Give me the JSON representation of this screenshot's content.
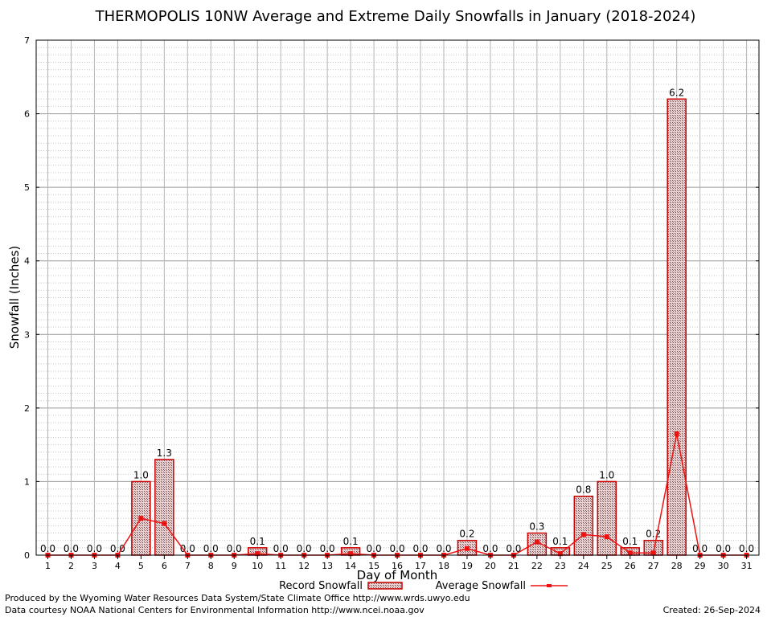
{
  "chart_data": {
    "type": "bar",
    "title": "THERMOPOLIS 10NW Average and Extreme Daily Snowfalls in January (2018-2024)",
    "xlabel": "Day of Month",
    "ylabel": "Snowfall (Inches)",
    "ylim": [
      0,
      7
    ],
    "yticks": [
      "0",
      "1",
      "2",
      "3",
      "4",
      "5",
      "6",
      "7"
    ],
    "categories": [
      "1",
      "2",
      "3",
      "4",
      "5",
      "6",
      "7",
      "8",
      "9",
      "10",
      "11",
      "12",
      "13",
      "14",
      "15",
      "16",
      "17",
      "18",
      "19",
      "20",
      "21",
      "22",
      "23",
      "24",
      "25",
      "26",
      "27",
      "28",
      "29",
      "30",
      "31"
    ],
    "series": [
      {
        "name": "Record Snowfall",
        "type": "bar",
        "color": "#cc0000",
        "fill": "#b08a8a",
        "values": [
          0.0,
          0.0,
          0.0,
          0.0,
          1.0,
          1.3,
          0.0,
          0.0,
          0.0,
          0.1,
          0.0,
          0.0,
          0.0,
          0.1,
          0.0,
          0.0,
          0.0,
          0.0,
          0.2,
          0.0,
          0.0,
          0.3,
          0.1,
          0.8,
          1.0,
          0.1,
          0.2,
          6.2,
          0.0,
          0.0,
          0.0
        ],
        "labels": [
          "0.0",
          "0.0",
          "0.0",
          "0.0",
          "1.0",
          "1.3",
          "0.0",
          "0.0",
          "0.0",
          "0.1",
          "0.0",
          "0.0",
          "0.0",
          "0.1",
          "0.0",
          "0.0",
          "0.0",
          "0.0",
          "0.2",
          "0.0",
          "0.0",
          "0.3",
          "0.1",
          "0.8",
          "1.0",
          "0.1",
          "0.2",
          "6.2",
          "0.0",
          "0.0",
          "0.0"
        ]
      },
      {
        "name": "Average Snowfall",
        "type": "line",
        "color": "#ee1111",
        "values": [
          0,
          0,
          0,
          0,
          0.5,
          0.43,
          0,
          0,
          0,
          0.02,
          0,
          0,
          0,
          0.02,
          0,
          0,
          0,
          0,
          0.09,
          0,
          0,
          0.18,
          0.02,
          0.28,
          0.25,
          0.03,
          0.03,
          1.65,
          0,
          0,
          0
        ]
      }
    ],
    "grid": true,
    "legend_position": "bottom-center"
  },
  "footer": {
    "line1": "Produced by the Wyoming Water Resources Data System/State Climate Office http://www.wrds.uwyo.edu",
    "line2": "Data courtesy NOAA National Centers for Environmental Information http://www.ncei.noaa.gov",
    "created": "Created:  26-Sep-2024"
  }
}
